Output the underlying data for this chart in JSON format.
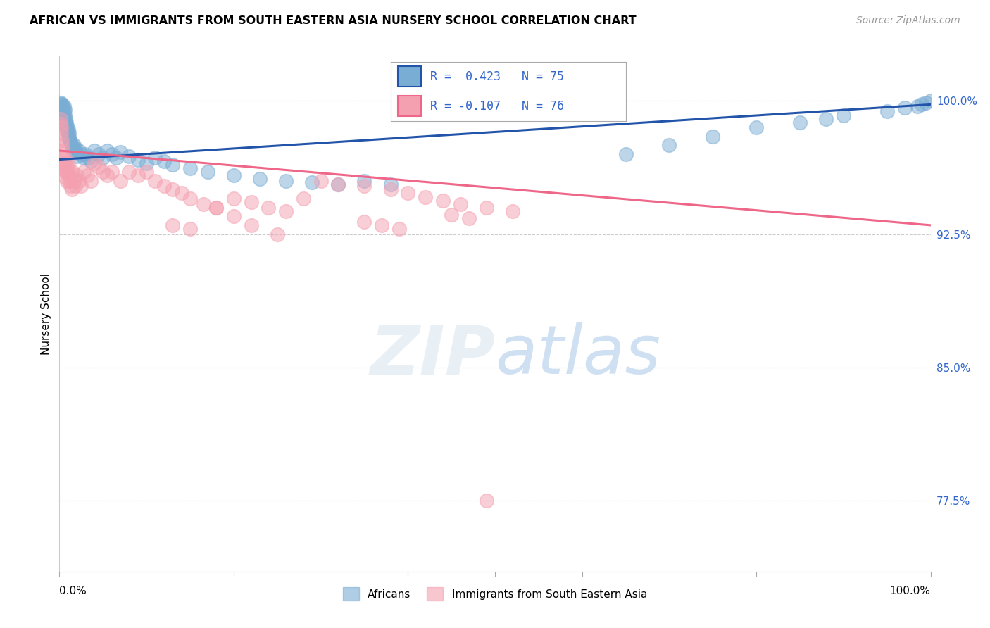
{
  "title": "AFRICAN VS IMMIGRANTS FROM SOUTH EASTERN ASIA NURSERY SCHOOL CORRELATION CHART",
  "source": "Source: ZipAtlas.com",
  "ylabel": "Nursery School",
  "yticks": [
    "100.0%",
    "92.5%",
    "85.0%",
    "77.5%"
  ],
  "ytick_vals": [
    1.0,
    0.925,
    0.85,
    0.775
  ],
  "xlim": [
    0.0,
    1.0
  ],
  "ylim": [
    0.735,
    1.025
  ],
  "legend_r1": "R =  0.423   N = 75",
  "legend_r2": "R = -0.107   N = 76",
  "blue_color": "#7AADD4",
  "pink_color": "#F4A0B0",
  "blue_line_color": "#2255AA",
  "pink_line_color": "#EE6688",
  "blue_line_x": [
    0.0,
    1.0
  ],
  "blue_line_y": [
    0.967,
    0.998
  ],
  "pink_line_x": [
    0.0,
    1.0
  ],
  "pink_line_y": [
    0.972,
    0.93
  ],
  "africans_x": [
    0.001,
    0.001,
    0.002,
    0.002,
    0.002,
    0.003,
    0.003,
    0.003,
    0.004,
    0.004,
    0.005,
    0.005,
    0.005,
    0.006,
    0.006,
    0.007,
    0.007,
    0.008,
    0.008,
    0.009,
    0.009,
    0.01,
    0.01,
    0.011,
    0.011,
    0.012,
    0.013,
    0.014,
    0.015,
    0.016,
    0.017,
    0.018,
    0.019,
    0.02,
    0.022,
    0.025,
    0.028,
    0.03,
    0.033,
    0.036,
    0.04,
    0.045,
    0.05,
    0.055,
    0.06,
    0.065,
    0.07,
    0.08,
    0.09,
    0.1,
    0.11,
    0.12,
    0.13,
    0.15,
    0.17,
    0.2,
    0.23,
    0.26,
    0.29,
    0.32,
    0.35,
    0.38,
    0.65,
    0.7,
    0.75,
    0.8,
    0.85,
    0.88,
    0.9,
    0.95,
    0.97,
    0.985,
    0.99,
    0.995,
    1.0
  ],
  "africans_y": [
    0.999,
    0.997,
    0.998,
    0.996,
    0.994,
    0.998,
    0.996,
    0.993,
    0.995,
    0.992,
    0.997,
    0.994,
    0.991,
    0.995,
    0.992,
    0.99,
    0.987,
    0.988,
    0.985,
    0.986,
    0.983,
    0.984,
    0.981,
    0.982,
    0.979,
    0.978,
    0.977,
    0.975,
    0.973,
    0.972,
    0.975,
    0.973,
    0.971,
    0.969,
    0.972,
    0.97,
    0.968,
    0.97,
    0.968,
    0.966,
    0.972,
    0.97,
    0.968,
    0.972,
    0.97,
    0.968,
    0.971,
    0.969,
    0.967,
    0.965,
    0.968,
    0.966,
    0.964,
    0.962,
    0.96,
    0.958,
    0.956,
    0.955,
    0.954,
    0.953,
    0.955,
    0.953,
    0.97,
    0.975,
    0.98,
    0.985,
    0.988,
    0.99,
    0.992,
    0.994,
    0.996,
    0.997,
    0.998,
    0.999,
    1.0
  ],
  "sea_x": [
    0.001,
    0.001,
    0.002,
    0.002,
    0.003,
    0.003,
    0.004,
    0.004,
    0.005,
    0.005,
    0.006,
    0.006,
    0.007,
    0.007,
    0.008,
    0.008,
    0.009,
    0.01,
    0.01,
    0.011,
    0.012,
    0.013,
    0.014,
    0.015,
    0.016,
    0.017,
    0.018,
    0.02,
    0.022,
    0.025,
    0.028,
    0.032,
    0.036,
    0.04,
    0.045,
    0.05,
    0.055,
    0.06,
    0.07,
    0.08,
    0.09,
    0.1,
    0.11,
    0.12,
    0.13,
    0.14,
    0.15,
    0.165,
    0.18,
    0.2,
    0.22,
    0.24,
    0.26,
    0.28,
    0.3,
    0.32,
    0.35,
    0.38,
    0.4,
    0.42,
    0.44,
    0.46,
    0.49,
    0.52,
    0.45,
    0.47,
    0.35,
    0.37,
    0.39,
    0.18,
    0.2,
    0.22,
    0.25,
    0.13,
    0.15,
    0.49
  ],
  "sea_y": [
    0.99,
    0.987,
    0.985,
    0.982,
    0.978,
    0.975,
    0.972,
    0.968,
    0.965,
    0.962,
    0.968,
    0.965,
    0.96,
    0.957,
    0.963,
    0.96,
    0.955,
    0.965,
    0.962,
    0.958,
    0.955,
    0.952,
    0.95,
    0.96,
    0.957,
    0.955,
    0.952,
    0.958,
    0.955,
    0.952,
    0.96,
    0.958,
    0.955,
    0.965,
    0.963,
    0.96,
    0.958,
    0.96,
    0.955,
    0.96,
    0.958,
    0.96,
    0.955,
    0.952,
    0.95,
    0.948,
    0.945,
    0.942,
    0.94,
    0.945,
    0.943,
    0.94,
    0.938,
    0.945,
    0.955,
    0.953,
    0.952,
    0.95,
    0.948,
    0.946,
    0.944,
    0.942,
    0.94,
    0.938,
    0.936,
    0.934,
    0.932,
    0.93,
    0.928,
    0.94,
    0.935,
    0.93,
    0.925,
    0.93,
    0.928,
    0.775
  ]
}
